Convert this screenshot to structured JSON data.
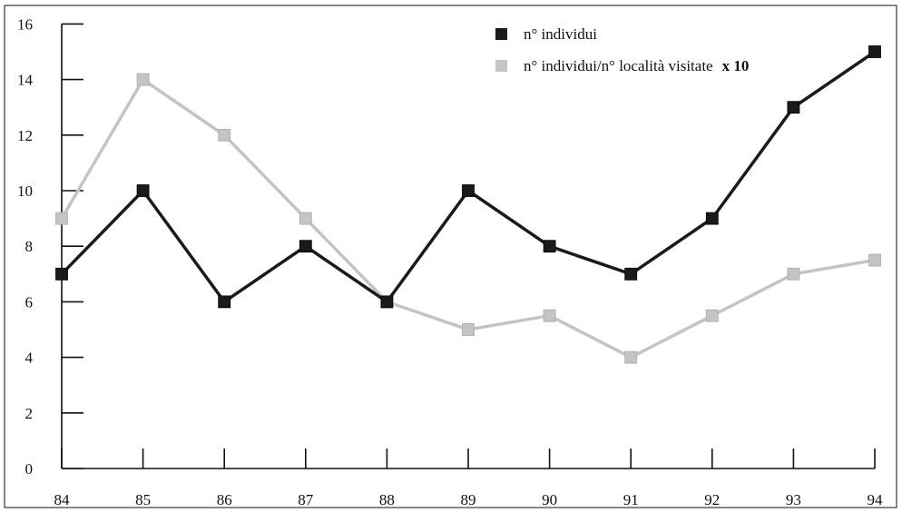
{
  "chart_data": {
    "type": "line",
    "x": [
      "84",
      "85",
      "86",
      "87",
      "88",
      "89",
      "90",
      "91",
      "92",
      "93",
      "94"
    ],
    "series": [
      {
        "name": "n° individui",
        "color": "#1a1a1a",
        "values": [
          7,
          10,
          6,
          8,
          6,
          10,
          8,
          7,
          9,
          13,
          15
        ]
      },
      {
        "name": "n° individui/n° località visitate",
        "name_suffix": "x 10",
        "color": "#c4c4c4",
        "values": [
          9,
          14,
          12,
          9,
          6,
          5,
          5.5,
          4,
          5.5,
          7,
          7.5
        ]
      }
    ],
    "ylim": [
      0,
      16
    ],
    "yticks": [
      "0",
      "2",
      "4",
      "6",
      "8",
      "10",
      "12",
      "14",
      "16"
    ],
    "grid": false,
    "legend_position": "top-right",
    "title": "",
    "xlabel": "",
    "ylabel": ""
  }
}
